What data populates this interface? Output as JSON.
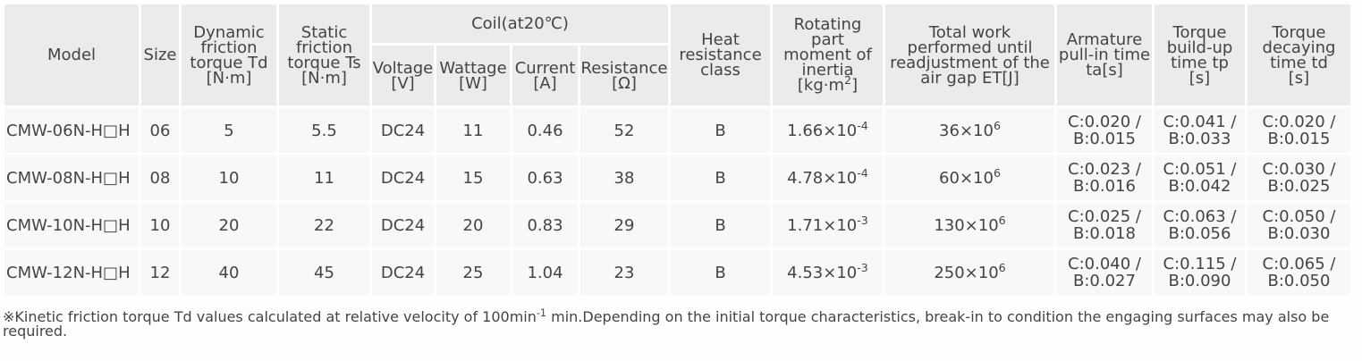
{
  "headers": {
    "model": "Model",
    "size": "Size",
    "dynamic": [
      "Dynamic",
      "friction",
      "torque Td",
      "[N·m]"
    ],
    "static": [
      "Static",
      "friction",
      "torque Ts",
      "[N·m]"
    ],
    "coil": "Coil(at20℃)",
    "voltage": [
      "Voltage",
      "[V]"
    ],
    "wattage": [
      "Wattage",
      "[W]"
    ],
    "current": [
      "Current",
      "[A]"
    ],
    "resistance": [
      "Resistance",
      "[Ω]"
    ],
    "heat": [
      "Heat",
      "resistance",
      "class"
    ],
    "inertia": [
      "Rotating",
      "part",
      "moment of",
      "inertia",
      "[kg·m",
      "2",
      "]"
    ],
    "work": [
      "Total work",
      "performed until",
      "readjustment of the",
      "air gap ET[J]"
    ],
    "armature": [
      "Armature",
      "pull-in time",
      "ta[s]"
    ],
    "buildup": [
      "Torque",
      "build-up",
      "time tp",
      "[s]"
    ],
    "decay": [
      "Torque",
      "decaying",
      "time td",
      "[s]"
    ]
  },
  "rows": [
    {
      "model": "CMW-06N-H□H",
      "size": "06",
      "td": "5",
      "ts": "5.5",
      "voltage": "DC24",
      "wattage": "11",
      "current": "0.46",
      "resistance": "52",
      "heat": "B",
      "inertia_base": "1.66×10",
      "inertia_exp": "-4",
      "work_base": "36×10",
      "work_exp": "6",
      "ta": [
        "C:0.020 /",
        "B:0.015"
      ],
      "tp": [
        "C:0.041 /",
        "B:0.033"
      ],
      "tdd": [
        "C:0.020 /",
        "B:0.015"
      ]
    },
    {
      "model": "CMW-08N-H□H",
      "size": "08",
      "td": "10",
      "ts": "11",
      "voltage": "DC24",
      "wattage": "15",
      "current": "0.63",
      "resistance": "38",
      "heat": "B",
      "inertia_base": "4.78×10",
      "inertia_exp": "-4",
      "work_base": "60×10",
      "work_exp": "6",
      "ta": [
        "C:0.023 /",
        "B:0.016"
      ],
      "tp": [
        "C:0.051 /",
        "B:0.042"
      ],
      "tdd": [
        "C:0.030 /",
        "B:0.025"
      ]
    },
    {
      "model": "CMW-10N-H□H",
      "size": "10",
      "td": "20",
      "ts": "22",
      "voltage": "DC24",
      "wattage": "20",
      "current": "0.83",
      "resistance": "29",
      "heat": "B",
      "inertia_base": "1.71×10",
      "inertia_exp": "-3",
      "work_base": "130×10",
      "work_exp": "6",
      "ta": [
        "C:0.025 /",
        "B:0.018"
      ],
      "tp": [
        "C:0.063 /",
        "B:0.056"
      ],
      "tdd": [
        "C:0.050 /",
        "B:0.030"
      ]
    },
    {
      "model": "CMW-12N-H□H",
      "size": "12",
      "td": "40",
      "ts": "45",
      "voltage": "DC24",
      "wattage": "25",
      "current": "1.04",
      "resistance": "23",
      "heat": "B",
      "inertia_base": "4.53×10",
      "inertia_exp": "-3",
      "work_base": "250×10",
      "work_exp": "6",
      "ta": [
        "C:0.040 /",
        "B:0.027"
      ],
      "tp": [
        "C:0.115 /",
        "B:0.090"
      ],
      "tdd": [
        "C:0.065 /",
        "B:0.050"
      ]
    }
  ],
  "note": {
    "before": "※Kinetic friction torque Td values calculated at relative velocity of 100min",
    "exp": "-1",
    "after": " min.Depending on the initial torque characteristics, break-in to condition the engaging surfaces may also be required."
  }
}
